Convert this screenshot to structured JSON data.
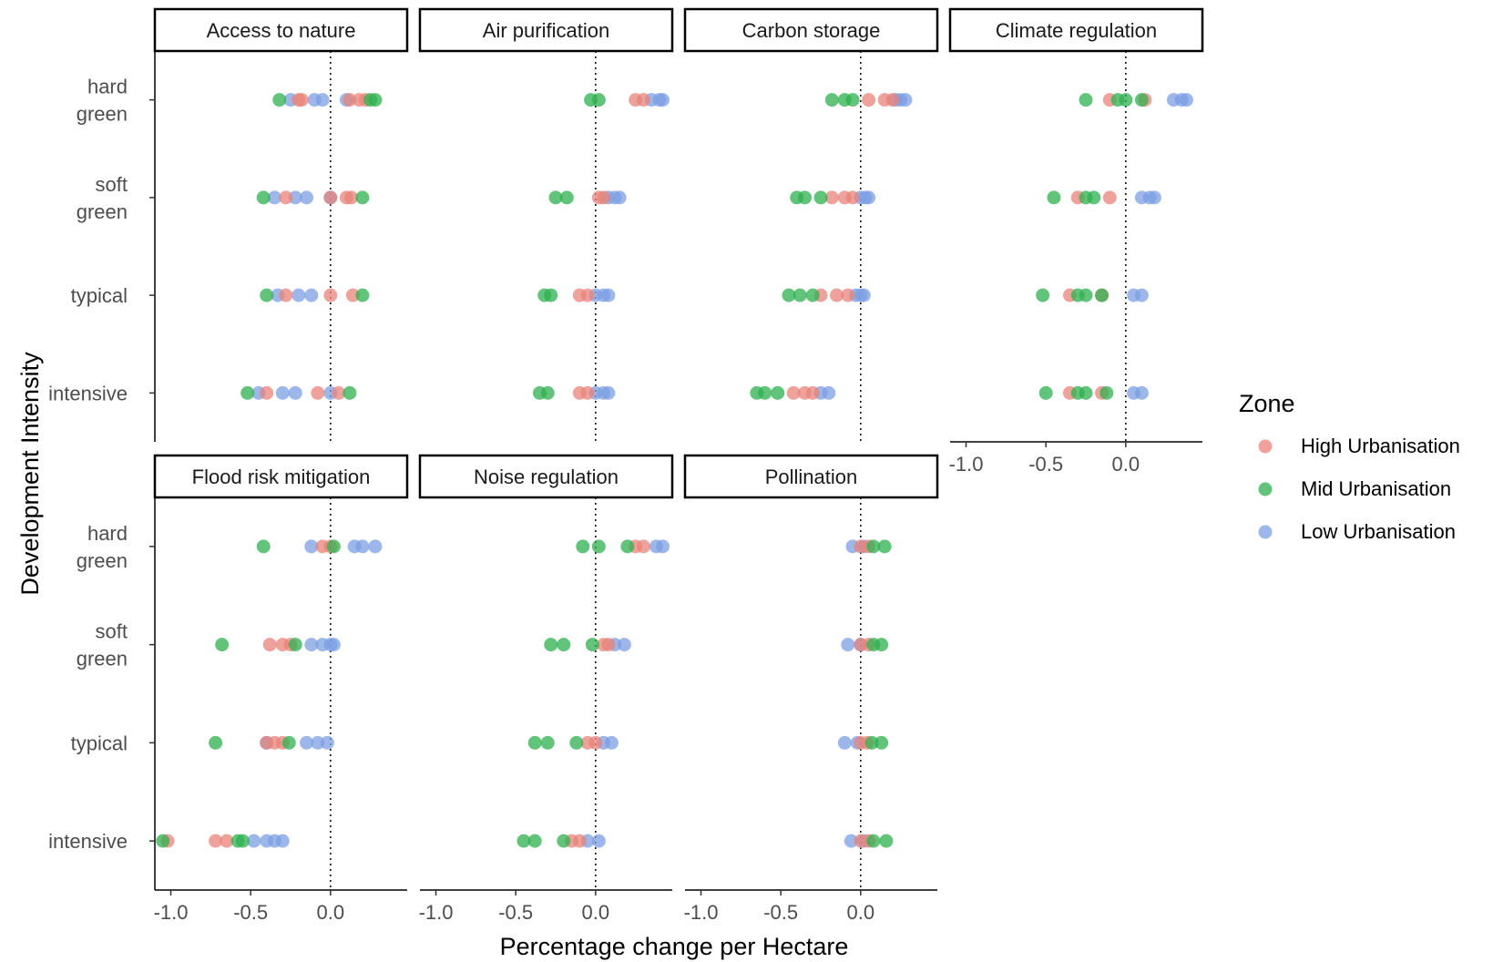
{
  "chart_data": {
    "type": "scatter",
    "xlabel": "Percentage change per Hectare",
    "ylabel": "Development Intensity",
    "xlim": [
      -1.1,
      0.48
    ],
    "x_ticks": [
      "-1.0",
      "-0.5",
      "0.0"
    ],
    "x_tick_values": [
      -1.0,
      -0.5,
      0.0
    ],
    "categories": [
      "hard green",
      "soft green",
      "typical",
      "intensive"
    ],
    "category_labels": [
      [
        "hard",
        "green"
      ],
      [
        "soft",
        "green"
      ],
      [
        "typical"
      ],
      [
        "intensive"
      ]
    ],
    "reference_line_x": 0.0,
    "legend": {
      "title": "Zone",
      "position": "right",
      "entries": [
        {
          "name": "High Urbanisation",
          "color": "#E8837A"
        },
        {
          "name": "Mid Urbanisation",
          "color": "#2DB04F"
        },
        {
          "name": "Low Urbanisation",
          "color": "#7C9FE3"
        }
      ]
    },
    "panels": [
      {
        "title": "Access to nature",
        "points": {
          "hard green": {
            "High Urbanisation": [
              -0.2,
              -0.18,
              0.12,
              0.18,
              0.22
            ],
            "Mid Urbanisation": [
              -0.32,
              0.25,
              0.28
            ],
            "Low Urbanisation": [
              -0.25,
              -0.1,
              -0.05,
              0.1
            ]
          },
          "soft green": {
            "High Urbanisation": [
              -0.28,
              0.0,
              0.1,
              0.13
            ],
            "Mid Urbanisation": [
              -0.42,
              0.2
            ],
            "Low Urbanisation": [
              -0.35,
              -0.22,
              -0.15,
              0.0
            ]
          },
          "typical": {
            "High Urbanisation": [
              -0.28,
              0.0,
              0.14
            ],
            "Mid Urbanisation": [
              -0.4,
              0.2
            ],
            "Low Urbanisation": [
              -0.33,
              -0.2,
              -0.12
            ]
          },
          "intensive": {
            "High Urbanisation": [
              -0.4,
              -0.08,
              0.05
            ],
            "Mid Urbanisation": [
              -0.52,
              0.12
            ],
            "Low Urbanisation": [
              -0.45,
              -0.3,
              -0.22,
              0.0
            ]
          }
        }
      },
      {
        "title": "Air purification",
        "points": {
          "hard green": {
            "High Urbanisation": [
              0.25,
              0.3
            ],
            "Mid Urbanisation": [
              -0.03,
              0.02
            ],
            "Low Urbanisation": [
              0.35,
              0.4,
              0.42
            ]
          },
          "soft green": {
            "High Urbanisation": [
              0.02,
              0.05
            ],
            "Mid Urbanisation": [
              -0.25,
              -0.18
            ],
            "Low Urbanisation": [
              0.08,
              0.12,
              0.15
            ]
          },
          "typical": {
            "High Urbanisation": [
              -0.1,
              -0.05
            ],
            "Mid Urbanisation": [
              -0.32,
              -0.28
            ],
            "Low Urbanisation": [
              0.0,
              0.05,
              0.08
            ]
          },
          "intensive": {
            "High Urbanisation": [
              -0.1,
              -0.05
            ],
            "Mid Urbanisation": [
              -0.35,
              -0.3
            ],
            "Low Urbanisation": [
              0.0,
              0.05,
              0.08
            ]
          }
        }
      },
      {
        "title": "Carbon storage",
        "points": {
          "hard green": {
            "High Urbanisation": [
              0.05,
              0.15,
              0.2
            ],
            "Mid Urbanisation": [
              -0.18,
              -0.1,
              -0.05
            ],
            "Low Urbanisation": [
              0.22,
              0.25,
              0.28
            ]
          },
          "soft green": {
            "High Urbanisation": [
              -0.18,
              -0.1,
              -0.05
            ],
            "Mid Urbanisation": [
              -0.4,
              -0.35,
              -0.25
            ],
            "Low Urbanisation": [
              0.0,
              0.03,
              0.05
            ]
          },
          "typical": {
            "High Urbanisation": [
              -0.25,
              -0.15,
              -0.08
            ],
            "Mid Urbanisation": [
              -0.45,
              -0.38,
              -0.3
            ],
            "Low Urbanisation": [
              -0.03,
              0.0,
              0.02
            ]
          },
          "intensive": {
            "High Urbanisation": [
              -0.42,
              -0.35,
              -0.3
            ],
            "Mid Urbanisation": [
              -0.65,
              -0.6,
              -0.52
            ],
            "Low Urbanisation": [
              -0.25,
              -0.2
            ]
          }
        }
      },
      {
        "title": "Climate regulation",
        "points": {
          "hard green": {
            "High Urbanisation": [
              -0.1,
              0.12
            ],
            "Mid Urbanisation": [
              -0.25,
              -0.05,
              0.0,
              0.1
            ],
            "Low Urbanisation": [
              0.3,
              0.35,
              0.38
            ]
          },
          "soft green": {
            "High Urbanisation": [
              -0.3,
              -0.1
            ],
            "Mid Urbanisation": [
              -0.45,
              -0.25,
              -0.2
            ],
            "Low Urbanisation": [
              0.1,
              0.15,
              0.18
            ]
          },
          "typical": {
            "High Urbanisation": [
              -0.35,
              -0.15
            ],
            "Mid Urbanisation": [
              -0.52,
              -0.3,
              -0.25,
              -0.15
            ],
            "Low Urbanisation": [
              0.05,
              0.1
            ]
          },
          "intensive": {
            "High Urbanisation": [
              -0.35,
              -0.15
            ],
            "Mid Urbanisation": [
              -0.5,
              -0.3,
              -0.25,
              -0.12
            ],
            "Low Urbanisation": [
              0.05,
              0.1
            ]
          }
        }
      },
      {
        "title": "Flood risk mitigation",
        "points": {
          "hard green": {
            "High Urbanisation": [
              -0.05,
              0.0
            ],
            "Mid Urbanisation": [
              -0.42,
              0.02
            ],
            "Low Urbanisation": [
              -0.12,
              0.15,
              0.2,
              0.28
            ]
          },
          "soft green": {
            "High Urbanisation": [
              -0.38,
              -0.3,
              -0.25
            ],
            "Mid Urbanisation": [
              -0.68,
              -0.22
            ],
            "Low Urbanisation": [
              -0.12,
              -0.05,
              0.0,
              0.02
            ]
          },
          "typical": {
            "High Urbanisation": [
              -0.4,
              -0.35,
              -0.3
            ],
            "Mid Urbanisation": [
              -0.72,
              -0.26
            ],
            "Low Urbanisation": [
              -0.4,
              -0.15,
              -0.08,
              -0.02
            ]
          },
          "intensive": {
            "High Urbanisation": [
              -1.02,
              -0.72,
              -0.65
            ],
            "Mid Urbanisation": [
              -1.05,
              -0.58,
              -0.55
            ],
            "Low Urbanisation": [
              -0.48,
              -0.4,
              -0.35,
              -0.3
            ]
          }
        }
      },
      {
        "title": "Noise regulation",
        "points": {
          "hard green": {
            "High Urbanisation": [
              0.25,
              0.3
            ],
            "Mid Urbanisation": [
              -0.08,
              0.02,
              0.2
            ],
            "Low Urbanisation": [
              0.38,
              0.42
            ]
          },
          "soft green": {
            "High Urbanisation": [
              0.05,
              0.08
            ],
            "Mid Urbanisation": [
              -0.28,
              -0.2,
              -0.02
            ],
            "Low Urbanisation": [
              0.12,
              0.18
            ]
          },
          "typical": {
            "High Urbanisation": [
              -0.05,
              0.0
            ],
            "Mid Urbanisation": [
              -0.38,
              -0.3,
              -0.12
            ],
            "Low Urbanisation": [
              0.05,
              0.1
            ]
          },
          "intensive": {
            "High Urbanisation": [
              -0.15,
              -0.1
            ],
            "Mid Urbanisation": [
              -0.45,
              -0.38,
              -0.2
            ],
            "Low Urbanisation": [
              -0.05,
              0.02
            ]
          }
        }
      },
      {
        "title": "Pollination",
        "points": {
          "hard green": {
            "High Urbanisation": [
              0.0,
              0.05
            ],
            "Mid Urbanisation": [
              0.08,
              0.15
            ],
            "Low Urbanisation": [
              -0.05,
              0.02
            ]
          },
          "soft green": {
            "High Urbanisation": [
              0.0,
              0.05
            ],
            "Mid Urbanisation": [
              0.08,
              0.13
            ],
            "Low Urbanisation": [
              -0.08,
              0.0
            ]
          },
          "typical": {
            "High Urbanisation": [
              0.0,
              0.04
            ],
            "Mid Urbanisation": [
              0.07,
              0.13
            ],
            "Low Urbanisation": [
              -0.1,
              -0.02
            ]
          },
          "intensive": {
            "High Urbanisation": [
              0.0,
              0.05
            ],
            "Mid Urbanisation": [
              0.08,
              0.16
            ],
            "Low Urbanisation": [
              -0.06,
              0.02
            ]
          }
        }
      }
    ]
  }
}
